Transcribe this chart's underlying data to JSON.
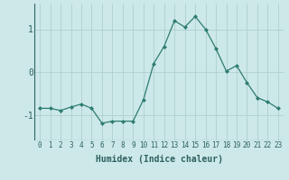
{
  "x": [
    0,
    1,
    2,
    3,
    4,
    5,
    6,
    7,
    8,
    9,
    10,
    11,
    12,
    13,
    14,
    15,
    16,
    17,
    18,
    19,
    20,
    21,
    22,
    23
  ],
  "y": [
    -0.85,
    -0.85,
    -0.9,
    -0.82,
    -0.75,
    -0.85,
    -1.2,
    -1.15,
    -1.15,
    -1.15,
    -0.65,
    0.2,
    0.6,
    1.2,
    1.05,
    1.3,
    1.0,
    0.55,
    0.02,
    0.15,
    -0.25,
    -0.6,
    -0.7,
    -0.85
  ],
  "line_color": "#2e7d6e",
  "marker": "D",
  "marker_size": 2,
  "bg_color": "#cce8e8",
  "grid_color": "#b0cfcf",
  "xlabel": "Humidex (Indice chaleur)",
  "xlim": [
    -0.5,
    23.5
  ],
  "ylim": [
    -1.6,
    1.6
  ],
  "yticks": [
    -1,
    0,
    1
  ],
  "xtick_labels": [
    "0",
    "1",
    "2",
    "3",
    "4",
    "5",
    "6",
    "7",
    "8",
    "9",
    "10",
    "11",
    "12",
    "13",
    "14",
    "15",
    "16",
    "17",
    "18",
    "19",
    "20",
    "21",
    "22",
    "23"
  ],
  "xlabel_fontsize": 7,
  "ytick_fontsize": 7,
  "xtick_fontsize": 5.5
}
